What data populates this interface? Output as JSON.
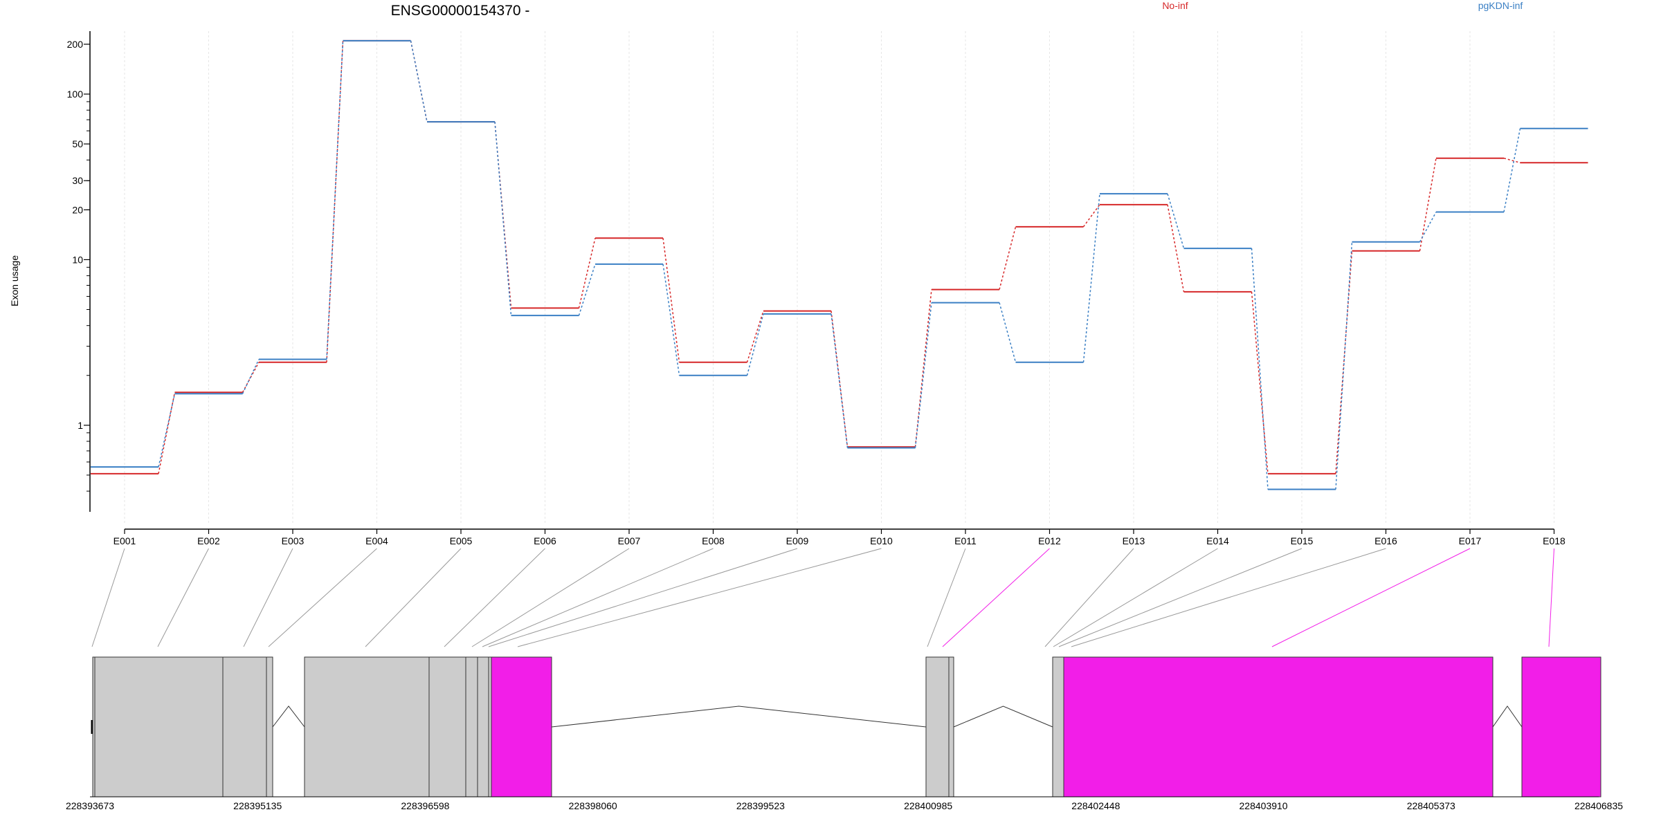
{
  "title": "ENSG00000154370 -",
  "ylabel": "Exon usage",
  "legend": [
    {
      "name": "No-inf",
      "color": "#d62728"
    },
    {
      "name": "pgKDN-inf",
      "color": "#3a7fc4"
    }
  ],
  "chart_data": {
    "type": "line",
    "scale": "log",
    "ylim": [
      0.3,
      240
    ],
    "yticks": [
      1,
      10,
      20,
      30,
      50,
      100,
      200
    ],
    "categories": [
      "E001",
      "E002",
      "E003",
      "E004",
      "E005",
      "E006",
      "E007",
      "E008",
      "E009",
      "E010",
      "E011",
      "E012",
      "E013",
      "E014",
      "E015",
      "E016",
      "E017",
      "E018"
    ],
    "series": [
      {
        "name": "No-inf",
        "color": "#d62728",
        "values": [
          0.51,
          1.58,
          2.4,
          210,
          68,
          5.1,
          13.5,
          2.4,
          4.9,
          0.74,
          6.6,
          15.8,
          21.5,
          6.4,
          0.51,
          11.3,
          41,
          38.5
        ]
      },
      {
        "name": "pgKDN-inf",
        "color": "#3a7fc4",
        "values": [
          0.56,
          1.55,
          2.5,
          210,
          68,
          4.6,
          9.4,
          2.0,
          4.7,
          0.73,
          5.5,
          2.4,
          25,
          11.7,
          0.41,
          12.8,
          19.4,
          62
        ]
      }
    ]
  },
  "gene_model": {
    "coordinate_labels": [
      "228393673",
      "228395135",
      "228396598",
      "228398060",
      "228399523",
      "228400985",
      "228402448",
      "228403910",
      "228405373",
      "228406835"
    ],
    "exon_color_default": "#cccccc",
    "exon_color_highlight": "#f21ee8",
    "highlighted_exons": [
      "E012",
      "E017",
      "E018"
    ]
  }
}
